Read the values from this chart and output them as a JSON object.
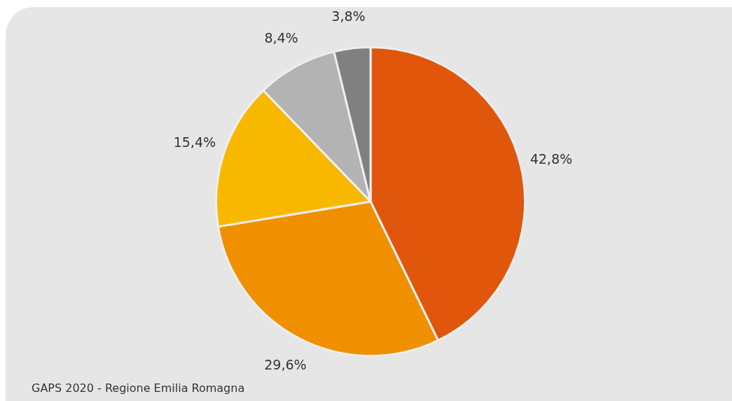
{
  "chart_data": {
    "type": "pie",
    "categories": [
      null,
      null,
      null,
      null,
      null
    ],
    "values": [
      42.8,
      29.6,
      15.4,
      8.4,
      3.8
    ],
    "colors": [
      "#e0560b",
      "#f09000",
      "#f9b800",
      "#b3b3b3",
      "#808080"
    ],
    "value_labels": [
      "42,8%",
      "29,6%",
      "15,4%",
      "8,4%",
      "3,8%"
    ],
    "legend": false,
    "annotations": [
      "GAPS 2020 - Regione Emilia Romagna"
    ]
  }
}
